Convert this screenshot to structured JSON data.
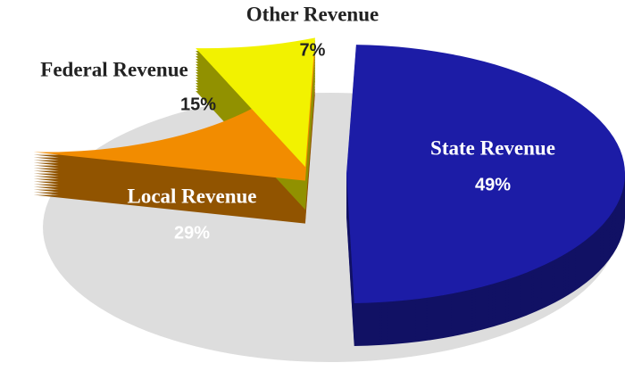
{
  "chart_data": {
    "type": "pie",
    "categories": [
      "State Revenue",
      "Local Revenue",
      "Federal Revenue",
      "Other Revenue"
    ],
    "values": [
      49,
      29,
      15,
      7
    ],
    "value_labels": [
      "49%",
      "29%",
      "15%",
      "7%"
    ],
    "colors": [
      "#1c1ca6",
      "#f28c00",
      "#f2f200",
      "#9a9a9a"
    ]
  }
}
